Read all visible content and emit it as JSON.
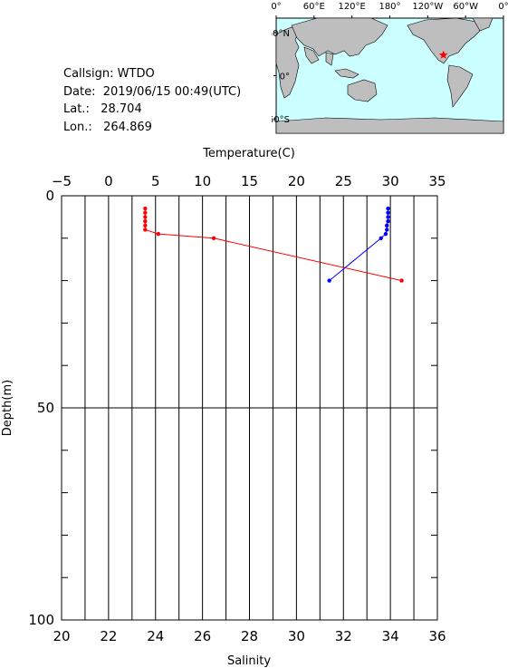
{
  "info": {
    "callsign_label": "Callsign:",
    "callsign": "WTDO",
    "date_label": "Date:",
    "date": "2019/06/15 00:49(UTC)",
    "lat_label": "Lat.:",
    "lat": "28.704",
    "lon_label": "Lon.:",
    "lon": "264.869"
  },
  "map": {
    "top_ticks": [
      "0°",
      "60°E",
      "120°E",
      "180°",
      "120°W",
      "60°W",
      "0°"
    ],
    "left_ticks": [
      "60°N",
      "0°",
      "60°S"
    ],
    "ocean_color": "#ccffff",
    "land_color": "#bebebe",
    "marker_color": "#ff0000",
    "marker_lon": 264.869,
    "marker_lat": 28.704
  },
  "chart_data": {
    "type": "line",
    "ylabel": "Depth(m)",
    "y_ticks": [
      0,
      50,
      100
    ],
    "ylim": [
      0,
      100
    ],
    "top_axis": {
      "label": "Temperature(C)",
      "lim": [
        -5,
        35
      ],
      "ticks": [
        -5,
        0,
        5,
        10,
        15,
        20,
        25,
        30,
        35
      ]
    },
    "bottom_axis": {
      "label": "Salinity",
      "lim": [
        20,
        36
      ],
      "ticks": [
        20,
        22,
        24,
        26,
        28,
        30,
        32,
        34,
        36
      ]
    },
    "grid": true,
    "series": [
      {
        "axis": "top",
        "color": "#ff0000",
        "points": [
          {
            "x": 3.9,
            "depth": 3
          },
          {
            "x": 3.9,
            "depth": 4
          },
          {
            "x": 3.9,
            "depth": 5
          },
          {
            "x": 3.9,
            "depth": 6
          },
          {
            "x": 3.9,
            "depth": 7
          },
          {
            "x": 3.9,
            "depth": 8
          },
          {
            "x": 5.3,
            "depth": 9
          },
          {
            "x": 11.2,
            "depth": 10
          },
          {
            "x": 31.2,
            "depth": 20
          }
        ]
      },
      {
        "axis": "bottom",
        "color": "#0000ff",
        "points": [
          {
            "x": 33.9,
            "depth": 3
          },
          {
            "x": 33.9,
            "depth": 4
          },
          {
            "x": 33.9,
            "depth": 5
          },
          {
            "x": 33.9,
            "depth": 6
          },
          {
            "x": 33.85,
            "depth": 7
          },
          {
            "x": 33.85,
            "depth": 8
          },
          {
            "x": 33.8,
            "depth": 9
          },
          {
            "x": 33.6,
            "depth": 10
          },
          {
            "x": 31.4,
            "depth": 20
          }
        ]
      }
    ]
  }
}
